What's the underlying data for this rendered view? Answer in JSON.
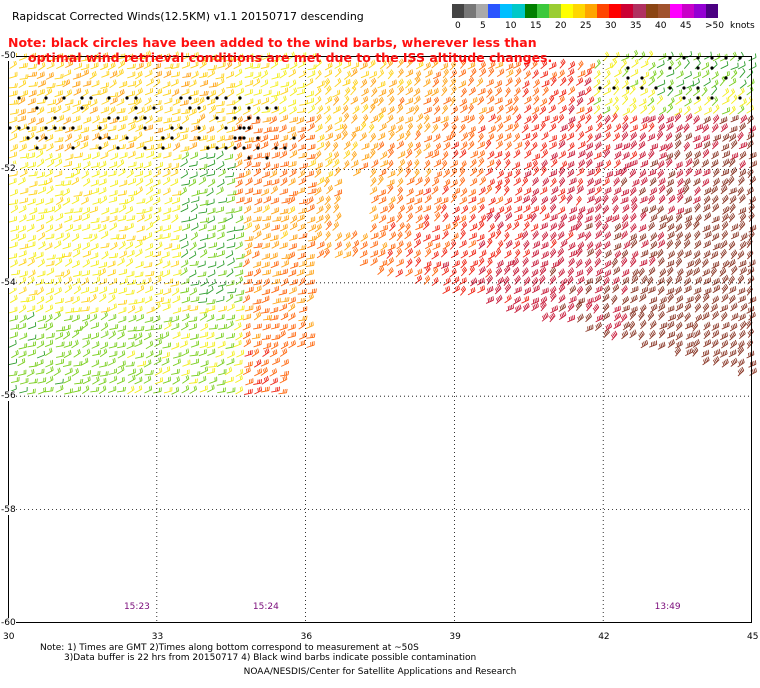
{
  "header": {
    "title": "Rapidscat Corrected Winds(12.5KM) v1.1 20150717 descending",
    "note_line1": "Note: black circles have been added to the wind barbs, wherever less than",
    "note_line2": "optimal wind retrieval conditions are met due to the ISS altitude changes."
  },
  "legend": {
    "unit": "knots",
    "labels": [
      "0",
      "5",
      "10",
      "15",
      "20",
      "25",
      "30",
      "35",
      "40",
      "45",
      ">50"
    ],
    "colors": [
      "#444444",
      "#777777",
      "#aaaaaa",
      "#2a55ff",
      "#00bfff",
      "#00c8c8",
      "#008000",
      "#3cc83c",
      "#9acd32",
      "#ffff00",
      "#ffd700",
      "#ffa500",
      "#ff4500",
      "#ff0000",
      "#cc0033",
      "#b03060",
      "#8b4513",
      "#a0522d",
      "#ff00ff",
      "#c800c8",
      "#9400d3",
      "#4b0082"
    ]
  },
  "map": {
    "lat_range": [
      -60,
      -50
    ],
    "lon_range": [
      30,
      45
    ],
    "lat_labels": [
      "-50",
      "-52",
      "-54",
      "-56",
      "-58",
      "-60"
    ],
    "lon_labels": [
      "30",
      "33",
      "36",
      "39",
      "42",
      "45"
    ],
    "pass_times": [
      {
        "label": "15:23",
        "lon": 32.6
      },
      {
        "label": "15:24",
        "lon": 35.2
      },
      {
        "label": "13:49",
        "lon": 43.3
      }
    ]
  },
  "footer": {
    "notes_line1": "Note: 1) Times are GMT 2)Times along bottom correspond to measurement at ~50S",
    "notes_line2": "3)Data buffer is 22 hrs from 20150717 4) Black wind barbs indicate possible contamination",
    "credit": "NOAA/NESDIS/Center for Satellite Applications and Research"
  }
}
